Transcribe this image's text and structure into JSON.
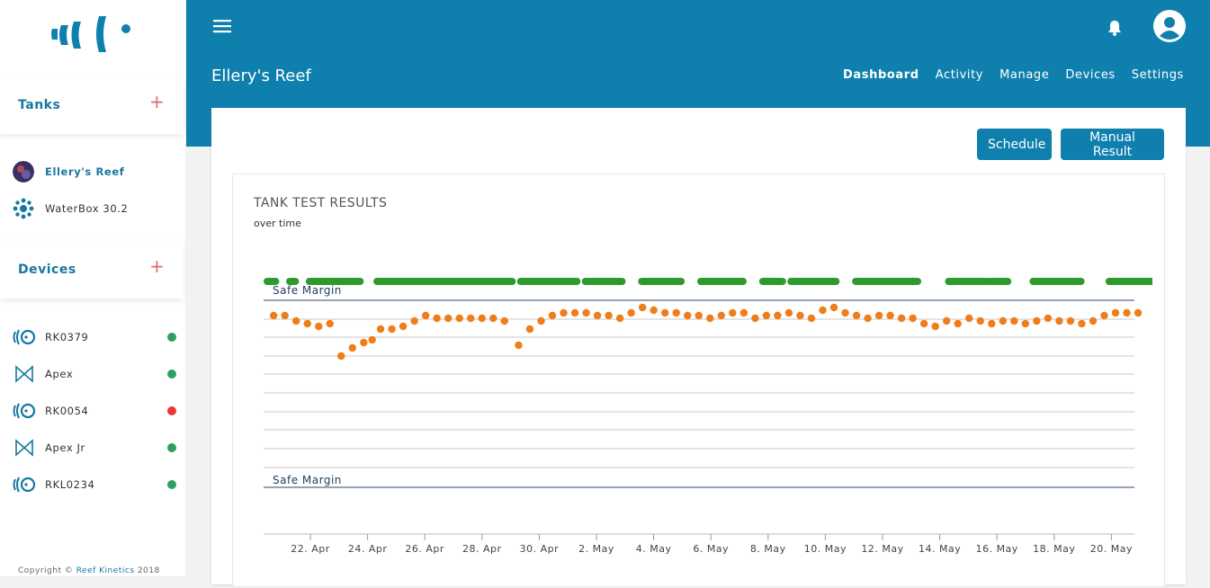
{
  "sidebar": {
    "tanks_title": "Tanks",
    "add_label": "+",
    "tanks": [
      {
        "label": "Ellery's Reef",
        "active": true
      },
      {
        "label": "WaterBox 30.2",
        "active": false
      }
    ],
    "devices_title": "Devices",
    "devices": [
      {
        "label": "RK0379",
        "icon": "rk-device-icon",
        "status": "online",
        "status_color": "#2f9e62"
      },
      {
        "label": "Apex",
        "icon": "apex-device-icon",
        "status": "online",
        "status_color": "#2f9e62"
      },
      {
        "label": "RK0054",
        "icon": "rk-device-icon",
        "status": "offline",
        "status_color": "#e53935"
      },
      {
        "label": "Apex Jr",
        "icon": "apex-device-icon",
        "status": "online",
        "status_color": "#2f9e62"
      },
      {
        "label": "RKL0234",
        "icon": "rk-device-icon",
        "status": "online",
        "status_color": "#2f9e62"
      }
    ],
    "copyright_prefix": "Copyright © ",
    "copyright_brand": "Reef Kinetics",
    "copyright_year": " 2018"
  },
  "header": {
    "title": "Ellery's Reef",
    "nav": [
      "Dashboard",
      "Activity",
      "Manage",
      "Devices",
      "Settings"
    ],
    "active_nav": "Dashboard",
    "accent": "#0f80ad"
  },
  "actions": {
    "schedule": "Schedule",
    "manual_result": "Manual Result"
  },
  "chart_data": {
    "type": "scatter",
    "title": "TANK TEST RESULTS",
    "subtitle": "over time",
    "x_ticks": [
      "22. Apr",
      "24. Apr",
      "26. Apr",
      "28. Apr",
      "30. Apr",
      "2. May",
      "4. May",
      "6. May",
      "8. May",
      "10. May",
      "12. May",
      "14. May",
      "16. May",
      "18. May",
      "20. May"
    ],
    "safe_margin_label": "Safe Margin",
    "x_range_days": [
      0,
      31
    ],
    "grid": true,
    "bands": {
      "top_green_segments": [
        [
          0.0,
          0.3
        ],
        [
          0.8,
          1.0
        ],
        [
          1.5,
          3.3
        ],
        [
          3.9,
          8.7
        ],
        [
          9.0,
          11.0
        ],
        [
          11.3,
          12.6
        ],
        [
          13.3,
          14.7
        ],
        [
          15.4,
          16.9
        ],
        [
          17.6,
          18.3
        ],
        [
          18.6,
          20.2
        ],
        [
          20.9,
          23.1
        ],
        [
          24.2,
          25.5
        ],
        [
          25.6,
          26.3
        ],
        [
          27.2,
          28.9
        ],
        [
          29.9,
          31.5
        ],
        [
          31.8,
          32.1
        ]
      ],
      "top_color": "#2e9a2e"
    },
    "series": [
      {
        "name": "main",
        "color": "#f07d1a",
        "points": [
          [
            0.1,
            0.52
          ],
          [
            0.5,
            0.52
          ],
          [
            0.9,
            0.5
          ],
          [
            1.3,
            0.49
          ],
          [
            1.7,
            0.48
          ],
          [
            2.1,
            0.49
          ],
          [
            2.5,
            0.37
          ],
          [
            2.9,
            0.4
          ],
          [
            3.3,
            0.42
          ],
          [
            3.6,
            0.43
          ],
          [
            3.9,
            0.47
          ],
          [
            4.3,
            0.47
          ],
          [
            4.7,
            0.48
          ],
          [
            5.1,
            0.5
          ],
          [
            5.5,
            0.52
          ],
          [
            5.9,
            0.51
          ],
          [
            6.3,
            0.51
          ],
          [
            6.7,
            0.51
          ],
          [
            7.1,
            0.51
          ],
          [
            7.5,
            0.51
          ],
          [
            7.9,
            0.51
          ],
          [
            8.3,
            0.5
          ],
          [
            8.8,
            0.41
          ],
          [
            9.2,
            0.47
          ],
          [
            9.6,
            0.5
          ],
          [
            10.0,
            0.52
          ],
          [
            10.4,
            0.53
          ],
          [
            10.8,
            0.53
          ],
          [
            11.2,
            0.53
          ],
          [
            11.6,
            0.52
          ],
          [
            12.0,
            0.52
          ],
          [
            12.4,
            0.51
          ],
          [
            12.8,
            0.53
          ],
          [
            13.2,
            0.55
          ],
          [
            13.6,
            0.54
          ],
          [
            14.0,
            0.53
          ],
          [
            14.4,
            0.53
          ],
          [
            14.8,
            0.52
          ],
          [
            15.2,
            0.52
          ],
          [
            15.6,
            0.51
          ],
          [
            16.0,
            0.52
          ],
          [
            16.4,
            0.53
          ],
          [
            16.8,
            0.53
          ],
          [
            17.2,
            0.51
          ],
          [
            17.6,
            0.52
          ],
          [
            18.0,
            0.52
          ],
          [
            18.4,
            0.53
          ],
          [
            18.8,
            0.52
          ],
          [
            19.2,
            0.51
          ],
          [
            19.6,
            0.54
          ],
          [
            20.0,
            0.55
          ],
          [
            20.4,
            0.53
          ],
          [
            20.8,
            0.52
          ],
          [
            21.2,
            0.51
          ],
          [
            21.6,
            0.52
          ],
          [
            22.0,
            0.52
          ],
          [
            22.4,
            0.51
          ],
          [
            22.8,
            0.51
          ],
          [
            23.2,
            0.49
          ],
          [
            23.6,
            0.48
          ],
          [
            24.0,
            0.5
          ],
          [
            24.4,
            0.49
          ],
          [
            24.8,
            0.51
          ],
          [
            25.2,
            0.5
          ],
          [
            25.6,
            0.49
          ],
          [
            26.0,
            0.5
          ],
          [
            26.4,
            0.5
          ],
          [
            26.8,
            0.49
          ],
          [
            27.2,
            0.5
          ],
          [
            27.6,
            0.51
          ],
          [
            28.0,
            0.5
          ],
          [
            28.4,
            0.5
          ],
          [
            28.8,
            0.49
          ],
          [
            29.2,
            0.5
          ],
          [
            29.6,
            0.52
          ],
          [
            30.0,
            0.53
          ],
          [
            30.4,
            0.53
          ],
          [
            30.8,
            0.53
          ]
        ]
      }
    ],
    "ylim": [
      0,
      1
    ]
  }
}
